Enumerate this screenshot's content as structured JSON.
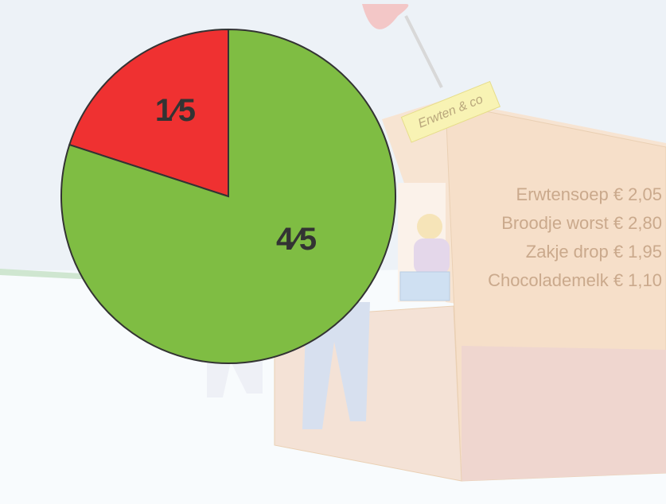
{
  "chart_data": {
    "type": "pie",
    "categories": [
      null,
      null
    ],
    "values": [
      0.2,
      0.8
    ],
    "value_labels": [
      "1⁄5",
      "4⁄5"
    ],
    "colors": [
      "#ef3131",
      "#7fbd43"
    ]
  },
  "scene": {
    "sign": "Erwten & co",
    "menu": [
      "Erwtensoep € 2,05",
      "Broodje worst € 2,80",
      "Zakje drop € 1,95",
      "Chocolademelk € 1,10"
    ]
  }
}
